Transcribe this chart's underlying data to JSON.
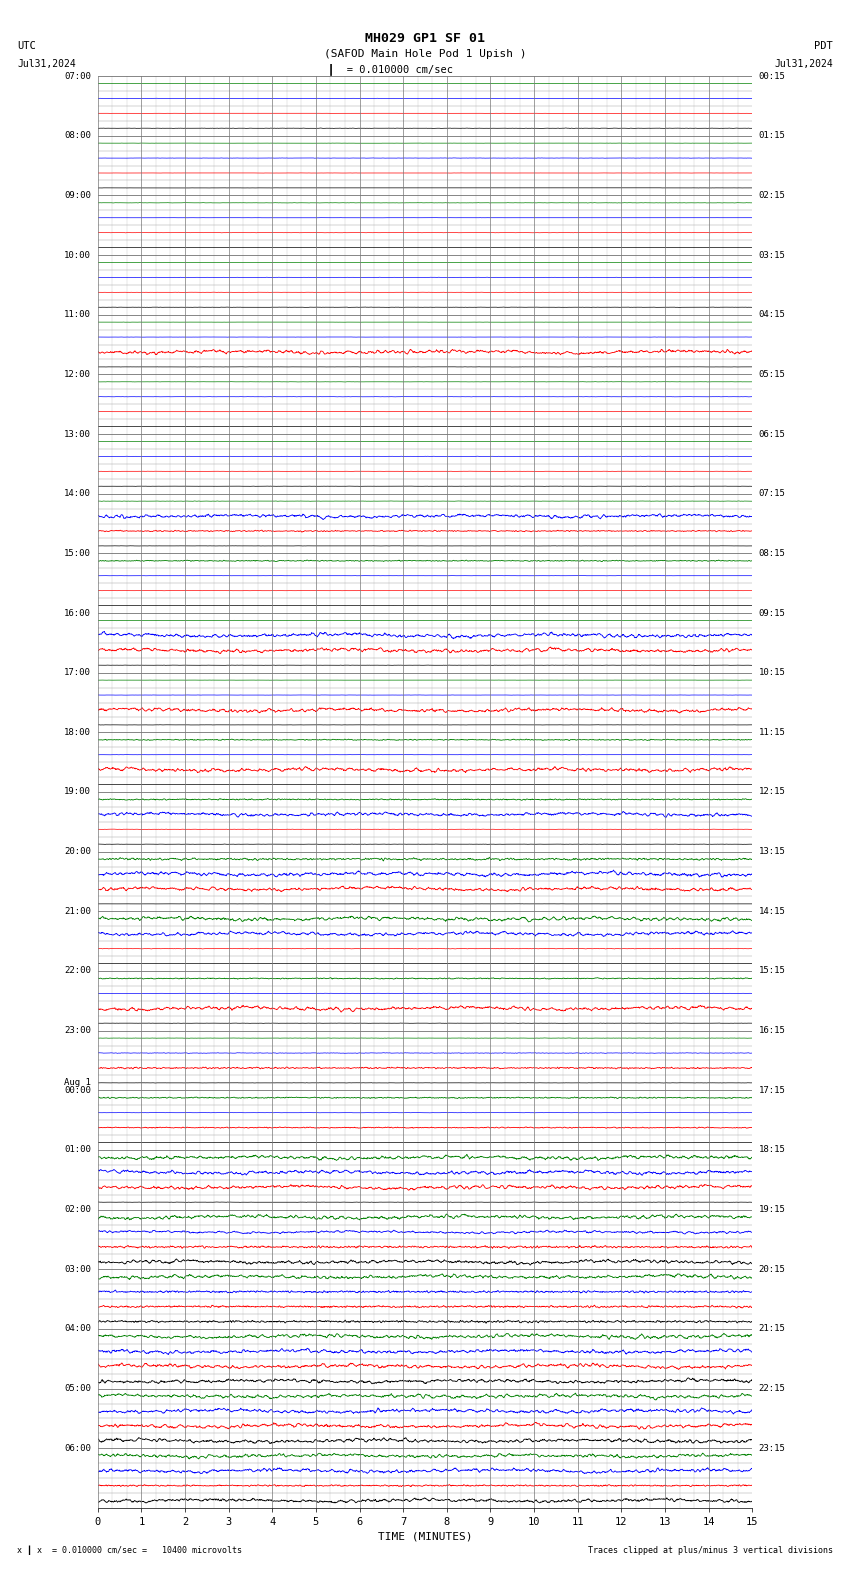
{
  "title_line1": "MH029 GP1 SF 01",
  "title_line2": "(SAFOD Main Hole Pod 1 Upish )",
  "scale_text": "= 0.010000 cm/sec",
  "utc_label": "UTC",
  "date_left": "Jul31,2024",
  "date_right": "Jul31,2024",
  "pdt_label": "PDT",
  "bottom_label1": "x  = 0.010000 cm/sec =   10400 microvolts",
  "bottom_label2": "Traces clipped at plus/minus 3 vertical divisions",
  "xlabel": "TIME (MINUTES)",
  "xmin": 0,
  "xmax": 15,
  "xticks": [
    0,
    1,
    2,
    3,
    4,
    5,
    6,
    7,
    8,
    9,
    10,
    11,
    12,
    13,
    14,
    15
  ],
  "bg_color": "#ffffff",
  "trace_colors": [
    "black",
    "red",
    "blue",
    "green"
  ],
  "n_hours": 24,
  "row_labels_left": [
    "07:00",
    "08:00",
    "09:00",
    "10:00",
    "11:00",
    "12:00",
    "13:00",
    "14:00",
    "15:00",
    "16:00",
    "17:00",
    "18:00",
    "19:00",
    "20:00",
    "21:00",
    "22:00",
    "23:00",
    "Aug 1\n00:00",
    "01:00",
    "02:00",
    "03:00",
    "04:00",
    "05:00",
    "06:00"
  ],
  "row_labels_right": [
    "00:15",
    "01:15",
    "02:15",
    "03:15",
    "04:15",
    "05:15",
    "06:15",
    "07:15",
    "08:15",
    "09:15",
    "10:15",
    "11:15",
    "12:15",
    "13:15",
    "14:15",
    "15:15",
    "16:15",
    "17:15",
    "18:15",
    "19:15",
    "20:15",
    "21:15",
    "22:15",
    "23:15"
  ],
  "fig_width": 8.5,
  "fig_height": 15.84,
  "active_traces": [
    [
      4,
      "red",
      0.38
    ],
    [
      7,
      "red",
      0.12
    ],
    [
      7,
      "blue",
      0.35
    ],
    [
      8,
      "green",
      0.1
    ],
    [
      9,
      "red",
      0.38
    ],
    [
      9,
      "blue",
      0.38
    ],
    [
      10,
      "red",
      0.38
    ],
    [
      11,
      "red",
      0.38
    ],
    [
      11,
      "green",
      0.1
    ],
    [
      12,
      "blue",
      0.35
    ],
    [
      12,
      "green",
      0.12
    ],
    [
      13,
      "red",
      0.38
    ],
    [
      13,
      "blue",
      0.38
    ],
    [
      13,
      "green",
      0.2
    ],
    [
      14,
      "red",
      0.05
    ],
    [
      14,
      "blue",
      0.35
    ],
    [
      14,
      "green",
      0.38
    ],
    [
      15,
      "red",
      0.38
    ],
    [
      15,
      "green",
      0.1
    ],
    [
      16,
      "red",
      0.15
    ],
    [
      16,
      "blue",
      0.05
    ],
    [
      17,
      "red",
      0.1
    ],
    [
      17,
      "green",
      0.12
    ],
    [
      18,
      "red",
      0.38
    ],
    [
      18,
      "blue",
      0.38
    ],
    [
      18,
      "green",
      0.38
    ],
    [
      19,
      "black",
      0.38
    ],
    [
      19,
      "red",
      0.2
    ],
    [
      19,
      "blue",
      0.25
    ],
    [
      19,
      "green",
      0.38
    ],
    [
      20,
      "black",
      0.2
    ],
    [
      20,
      "red",
      0.2
    ],
    [
      20,
      "blue",
      0.2
    ],
    [
      20,
      "green",
      0.38
    ],
    [
      21,
      "black",
      0.38
    ],
    [
      21,
      "red",
      0.38
    ],
    [
      21,
      "blue",
      0.38
    ],
    [
      21,
      "green",
      0.38
    ],
    [
      22,
      "black",
      0.38
    ],
    [
      22,
      "red",
      0.38
    ],
    [
      22,
      "blue",
      0.38
    ],
    [
      22,
      "green",
      0.38
    ],
    [
      23,
      "black",
      0.38
    ],
    [
      23,
      "red",
      0.15
    ],
    [
      23,
      "blue",
      0.38
    ],
    [
      23,
      "green",
      0.38
    ]
  ]
}
